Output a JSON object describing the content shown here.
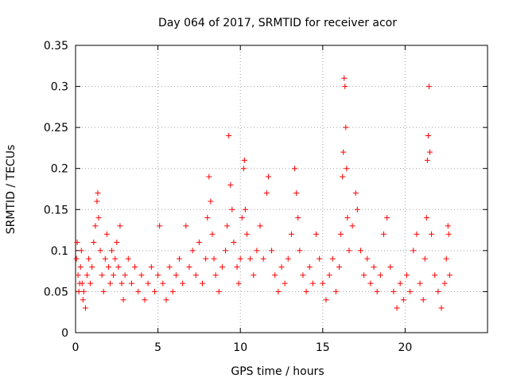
{
  "chart_data": {
    "type": "scatter",
    "title": "Day 064 of 2017, SRMTID for receiver acor",
    "xlabel": "GPS time / hours",
    "ylabel": "SRMTID / TECUs",
    "xlim": [
      0,
      25
    ],
    "ylim": [
      0,
      0.35
    ],
    "xticks": [
      0,
      5,
      10,
      15,
      20
    ],
    "xtick_labels": [
      "0",
      "5",
      "10",
      "15",
      "20"
    ],
    "yticks": [
      0,
      0.05,
      0.1,
      0.15,
      0.2,
      0.25,
      0.3,
      0.35
    ],
    "ytick_labels": [
      "0",
      "0.05",
      "0.1",
      "0.15",
      "0.2",
      "0.25",
      "0.3",
      "0.35"
    ],
    "grid": true,
    "marker": "+",
    "color": "#ff0000",
    "series": [
      {
        "name": "SRMTID",
        "points": [
          [
            0.05,
            0.09
          ],
          [
            0.1,
            0.11
          ],
          [
            0.15,
            0.07
          ],
          [
            0.2,
            0.05
          ],
          [
            0.25,
            0.06
          ],
          [
            0.3,
            0.08
          ],
          [
            0.35,
            0.1
          ],
          [
            0.4,
            0.06
          ],
          [
            0.45,
            0.04
          ],
          [
            0.5,
            0.05
          ],
          [
            0.6,
            0.03
          ],
          [
            0.7,
            0.07
          ],
          [
            0.8,
            0.09
          ],
          [
            0.9,
            0.06
          ],
          [
            1.0,
            0.08
          ],
          [
            1.1,
            0.11
          ],
          [
            1.2,
            0.13
          ],
          [
            1.3,
            0.16
          ],
          [
            1.35,
            0.17
          ],
          [
            1.4,
            0.14
          ],
          [
            1.5,
            0.1
          ],
          [
            1.6,
            0.07
          ],
          [
            1.7,
            0.05
          ],
          [
            1.8,
            0.09
          ],
          [
            1.9,
            0.12
          ],
          [
            2.0,
            0.08
          ],
          [
            2.1,
            0.06
          ],
          [
            2.2,
            0.1
          ],
          [
            2.3,
            0.07
          ],
          [
            2.4,
            0.09
          ],
          [
            2.5,
            0.11
          ],
          [
            2.6,
            0.08
          ],
          [
            2.7,
            0.13
          ],
          [
            2.8,
            0.06
          ],
          [
            2.9,
            0.04
          ],
          [
            3.0,
            0.07
          ],
          [
            3.2,
            0.09
          ],
          [
            3.4,
            0.06
          ],
          [
            3.6,
            0.08
          ],
          [
            3.8,
            0.05
          ],
          [
            4.0,
            0.07
          ],
          [
            4.2,
            0.04
          ],
          [
            4.4,
            0.06
          ],
          [
            4.6,
            0.08
          ],
          [
            4.8,
            0.05
          ],
          [
            5.0,
            0.07
          ],
          [
            5.1,
            0.13
          ],
          [
            5.3,
            0.06
          ],
          [
            5.5,
            0.04
          ],
          [
            5.7,
            0.08
          ],
          [
            5.9,
            0.05
          ],
          [
            6.1,
            0.07
          ],
          [
            6.3,
            0.09
          ],
          [
            6.5,
            0.06
          ],
          [
            6.7,
            0.13
          ],
          [
            6.9,
            0.08
          ],
          [
            7.1,
            0.1
          ],
          [
            7.3,
            0.07
          ],
          [
            7.5,
            0.11
          ],
          [
            7.7,
            0.06
          ],
          [
            7.9,
            0.09
          ],
          [
            8.0,
            0.14
          ],
          [
            8.1,
            0.19
          ],
          [
            8.2,
            0.16
          ],
          [
            8.3,
            0.12
          ],
          [
            8.4,
            0.09
          ],
          [
            8.5,
            0.07
          ],
          [
            8.7,
            0.05
          ],
          [
            8.9,
            0.08
          ],
          [
            9.1,
            0.1
          ],
          [
            9.2,
            0.13
          ],
          [
            9.3,
            0.24
          ],
          [
            9.4,
            0.18
          ],
          [
            9.5,
            0.15
          ],
          [
            9.6,
            0.11
          ],
          [
            9.8,
            0.08
          ],
          [
            9.9,
            0.06
          ],
          [
            10.0,
            0.09
          ],
          [
            10.1,
            0.14
          ],
          [
            10.2,
            0.2
          ],
          [
            10.25,
            0.21
          ],
          [
            10.3,
            0.15
          ],
          [
            10.4,
            0.12
          ],
          [
            10.6,
            0.09
          ],
          [
            10.8,
            0.07
          ],
          [
            11.0,
            0.1
          ],
          [
            11.2,
            0.13
          ],
          [
            11.4,
            0.09
          ],
          [
            11.6,
            0.17
          ],
          [
            11.7,
            0.19
          ],
          [
            11.9,
            0.1
          ],
          [
            12.1,
            0.07
          ],
          [
            12.3,
            0.05
          ],
          [
            12.5,
            0.08
          ],
          [
            12.7,
            0.06
          ],
          [
            12.9,
            0.09
          ],
          [
            13.1,
            0.12
          ],
          [
            13.3,
            0.2
          ],
          [
            13.4,
            0.17
          ],
          [
            13.5,
            0.14
          ],
          [
            13.6,
            0.1
          ],
          [
            13.8,
            0.07
          ],
          [
            14.0,
            0.05
          ],
          [
            14.2,
            0.08
          ],
          [
            14.4,
            0.06
          ],
          [
            14.6,
            0.12
          ],
          [
            14.8,
            0.09
          ],
          [
            15.0,
            0.06
          ],
          [
            15.2,
            0.04
          ],
          [
            15.4,
            0.07
          ],
          [
            15.6,
            0.09
          ],
          [
            15.8,
            0.05
          ],
          [
            16.0,
            0.08
          ],
          [
            16.1,
            0.12
          ],
          [
            16.2,
            0.19
          ],
          [
            16.25,
            0.22
          ],
          [
            16.3,
            0.31
          ],
          [
            16.35,
            0.3
          ],
          [
            16.4,
            0.25
          ],
          [
            16.45,
            0.2
          ],
          [
            16.5,
            0.14
          ],
          [
            16.6,
            0.1
          ],
          [
            16.8,
            0.13
          ],
          [
            17.0,
            0.17
          ],
          [
            17.1,
            0.15
          ],
          [
            17.3,
            0.1
          ],
          [
            17.5,
            0.07
          ],
          [
            17.7,
            0.09
          ],
          [
            17.9,
            0.06
          ],
          [
            18.1,
            0.08
          ],
          [
            18.3,
            0.05
          ],
          [
            18.5,
            0.07
          ],
          [
            18.7,
            0.12
          ],
          [
            18.9,
            0.14
          ],
          [
            19.1,
            0.08
          ],
          [
            19.3,
            0.05
          ],
          [
            19.5,
            0.03
          ],
          [
            19.7,
            0.06
          ],
          [
            19.9,
            0.04
          ],
          [
            20.1,
            0.07
          ],
          [
            20.3,
            0.05
          ],
          [
            20.5,
            0.1
          ],
          [
            20.7,
            0.12
          ],
          [
            20.9,
            0.06
          ],
          [
            21.1,
            0.04
          ],
          [
            21.2,
            0.09
          ],
          [
            21.3,
            0.14
          ],
          [
            21.35,
            0.21
          ],
          [
            21.4,
            0.24
          ],
          [
            21.45,
            0.3
          ],
          [
            21.5,
            0.22
          ],
          [
            21.6,
            0.12
          ],
          [
            21.8,
            0.07
          ],
          [
            22.0,
            0.05
          ],
          [
            22.2,
            0.03
          ],
          [
            22.4,
            0.06
          ],
          [
            22.5,
            0.09
          ],
          [
            22.6,
            0.13
          ],
          [
            22.65,
            0.12
          ],
          [
            22.7,
            0.07
          ]
        ]
      }
    ]
  }
}
